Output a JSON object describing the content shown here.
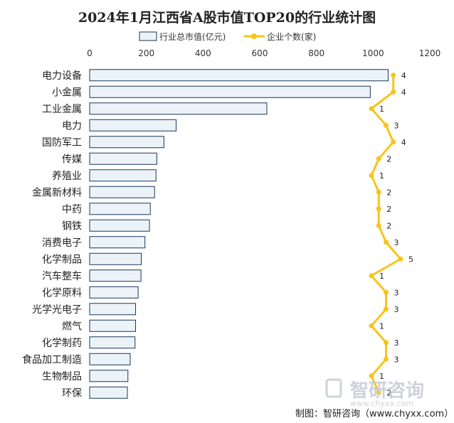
{
  "chart_data": {
    "type": "bar",
    "title": "2024年1月江西省A股市值TOP20的行业统计图",
    "categories": [
      "电力设备",
      "小金属",
      "工业金属",
      "电力",
      "国防军工",
      "传媒",
      "养殖业",
      "金属新材料",
      "中药",
      "钢铁",
      "消费电子",
      "化学制品",
      "汽车整车",
      "化学原料",
      "光学光电子",
      "燃气",
      "化学制药",
      "食品加工制造",
      "生物制品",
      "环保"
    ],
    "series": [
      {
        "name": "行业总市值(亿元)",
        "type": "bar",
        "values": [
          1053,
          990,
          625,
          305,
          262,
          237,
          234,
          229,
          214,
          211,
          195,
          182,
          181,
          171,
          162,
          162,
          160,
          143,
          135,
          133
        ],
        "color": "#ecf3f8",
        "stroke": "#17365d"
      },
      {
        "name": "企业个数(家)",
        "type": "line",
        "values": [
          4,
          4,
          1,
          3,
          4,
          2,
          1,
          2,
          2,
          2,
          3,
          5,
          1,
          3,
          3,
          1,
          3,
          3,
          1,
          2
        ],
        "color": "#f7c41c"
      }
    ],
    "xlim": [
      0,
      1200
    ],
    "xticks": [
      "0",
      "200",
      "400",
      "600",
      "800",
      "1000",
      "1200"
    ],
    "grid": false,
    "legend_position": "top"
  },
  "watermark": {
    "brand": "智研咨询",
    "url": "www.chyxx.com"
  },
  "credit": "制图：智研咨询（www.chyxx.com）"
}
